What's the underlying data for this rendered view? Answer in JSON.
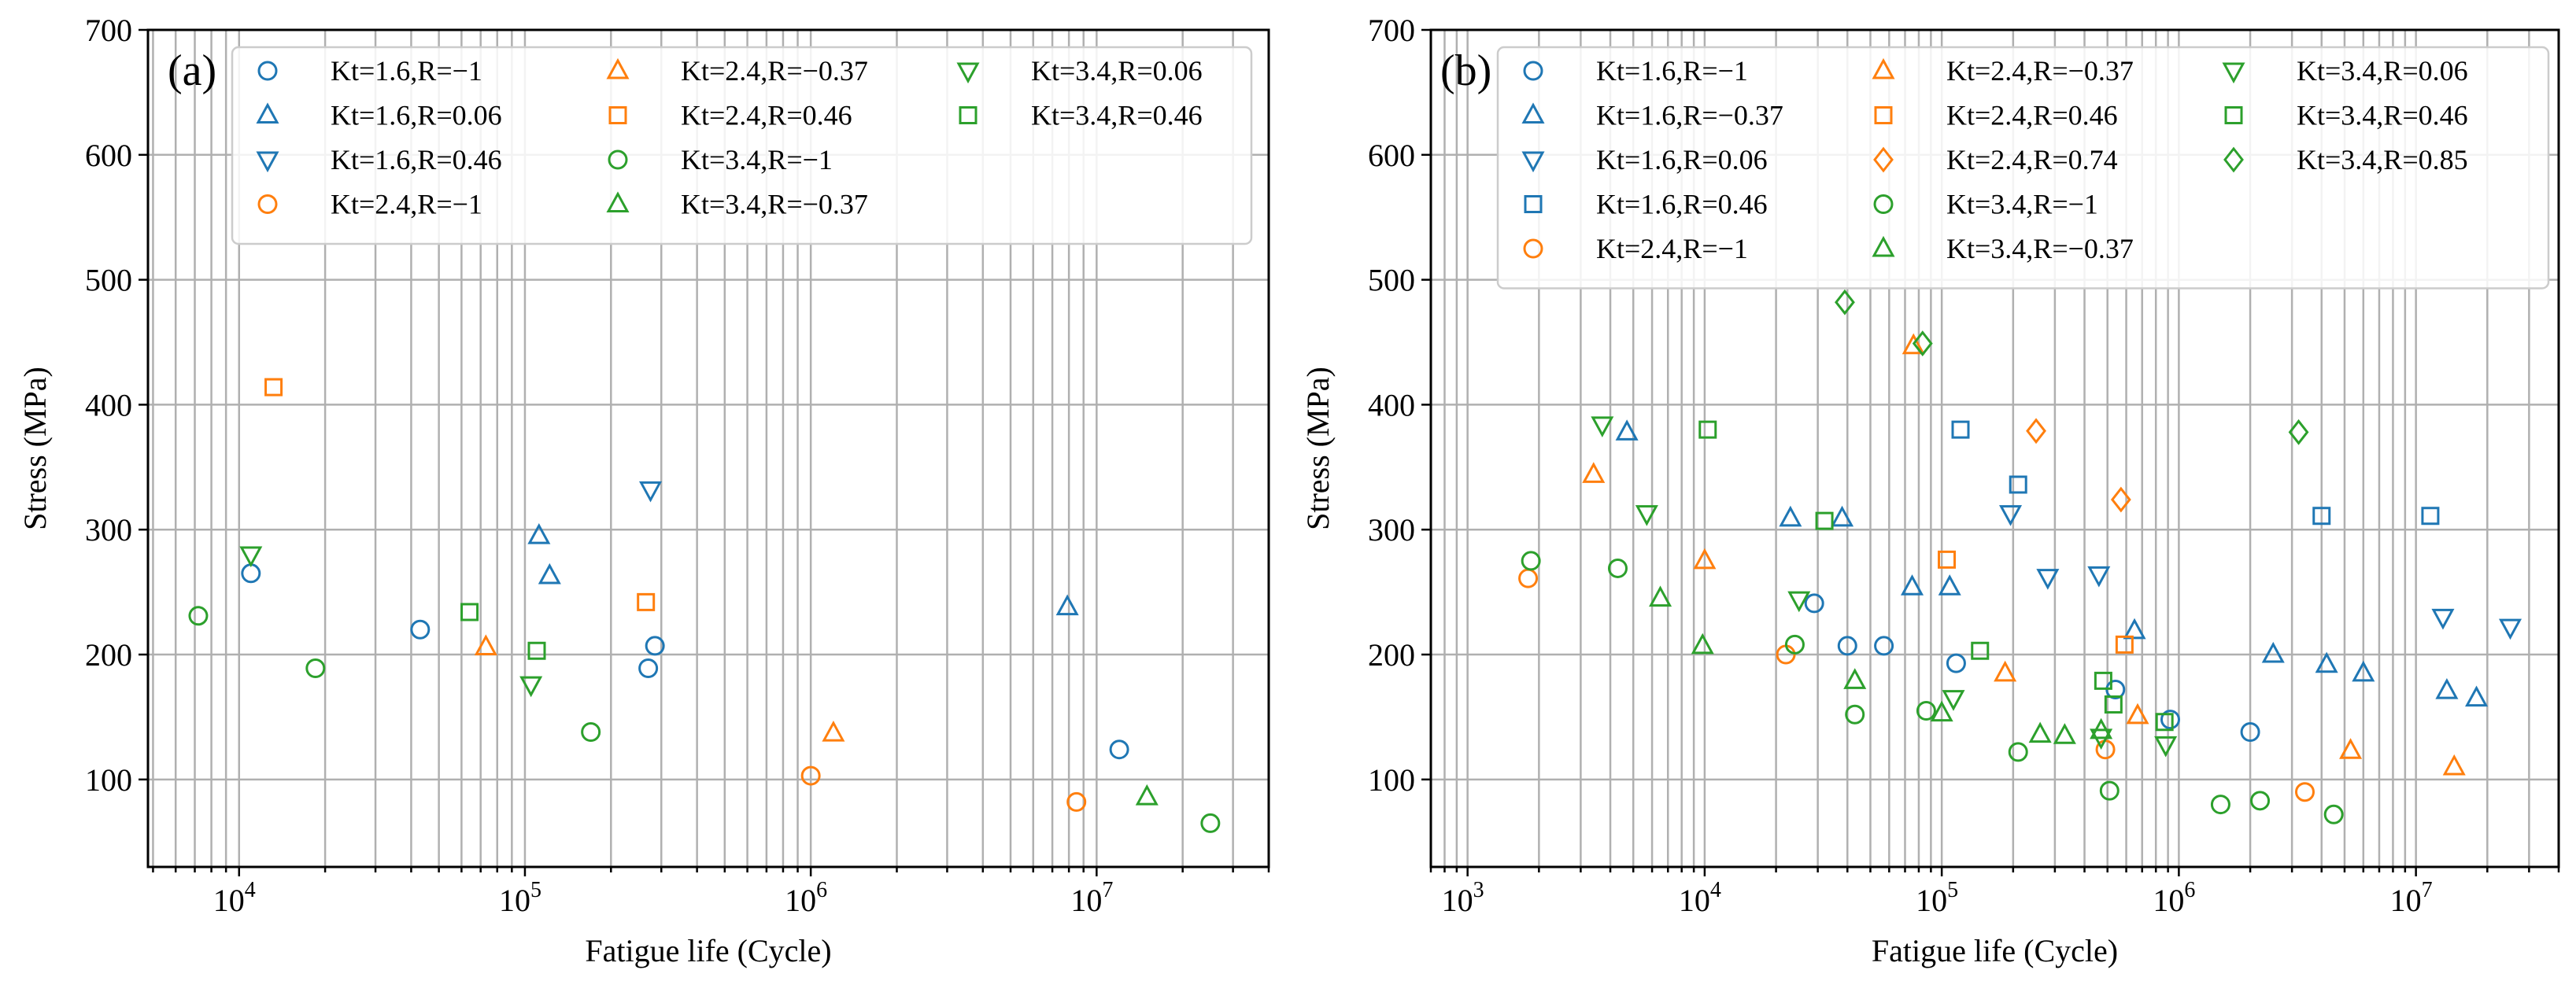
{
  "figure": {
    "panel_labels": [
      "(a)",
      "(b)"
    ]
  },
  "chart_data": [
    {
      "type": "scatter",
      "panel": "(a)",
      "title": "",
      "xlabel": "Fatigue life (Cycle)",
      "ylabel": "Stress (MPa)",
      "xscale": "log",
      "xlim": [
        4800,
        40000000
      ],
      "ylim": [
        30,
        700
      ],
      "yticks": [
        100,
        200,
        300,
        400,
        500,
        600,
        700
      ],
      "xticks": [
        {
          "value": 10000,
          "base": "10",
          "exp": "4"
        },
        {
          "value": 100000,
          "base": "10",
          "exp": "5"
        },
        {
          "value": 1000000,
          "base": "10",
          "exp": "6"
        },
        {
          "value": 10000000,
          "base": "10",
          "exp": "7"
        }
      ],
      "grid": true,
      "legend": {
        "placement": "top",
        "columns": 3
      },
      "series": [
        {
          "name": "Kt=1.6,R=−1",
          "marker": "circle",
          "color": "#1f77b4",
          "points": [
            [
              11000,
              265
            ],
            [
              43000,
              220
            ],
            [
              270000,
              189
            ],
            [
              285000,
              207
            ],
            [
              12000000,
              124
            ]
          ]
        },
        {
          "name": "Kt=1.6,R=0.06",
          "marker": "triangle-up",
          "color": "#1f77b4",
          "points": [
            [
              112000,
              295
            ],
            [
              122000,
              263
            ],
            [
              7900000,
              238
            ]
          ]
        },
        {
          "name": "Kt=1.6,R=0.46",
          "marker": "triangle-down",
          "color": "#1f77b4",
          "points": [
            [
              275000,
              332
            ]
          ]
        },
        {
          "name": "Kt=2.4,R=−1",
          "marker": "circle",
          "color": "#ff7f0e",
          "points": [
            [
              1000000,
              103
            ],
            [
              8500000,
              82
            ]
          ]
        },
        {
          "name": "Kt=2.4,R=−0.37",
          "marker": "triangle-up",
          "color": "#ff7f0e",
          "points": [
            [
              73000,
              206
            ],
            [
              1200000,
              137
            ]
          ]
        },
        {
          "name": "Kt=2.4,R=0.46",
          "marker": "square",
          "color": "#ff7f0e",
          "points": [
            [
              13200,
              414
            ],
            [
              265000,
              242
            ]
          ]
        },
        {
          "name": "Kt=3.4,R=−1",
          "marker": "circle",
          "color": "#2ca02c",
          "points": [
            [
              7200,
              231
            ],
            [
              18500,
              189
            ],
            [
              170000,
              138
            ],
            [
              25000000,
              65
            ]
          ]
        },
        {
          "name": "Kt=3.4,R=−0.37",
          "marker": "triangle-up",
          "color": "#2ca02c",
          "points": [
            [
              15000000,
              86
            ]
          ]
        },
        {
          "name": "Kt=3.4,R=0.06",
          "marker": "triangle-down",
          "color": "#2ca02c",
          "points": [
            [
              11000,
              280
            ],
            [
              105000,
              176
            ]
          ]
        },
        {
          "name": "Kt=3.4,R=0.46",
          "marker": "square",
          "color": "#2ca02c",
          "points": [
            [
              64000,
              234
            ],
            [
              110000,
              203
            ]
          ]
        }
      ]
    },
    {
      "type": "scatter",
      "panel": "(b)",
      "title": "",
      "xlabel": "Fatigue life (Cycle)",
      "ylabel": "Stress (MPa)",
      "xscale": "log",
      "xlim": [
        700,
        40000000
      ],
      "ylim": [
        30,
        700
      ],
      "yticks": [
        100,
        200,
        300,
        400,
        500,
        600,
        700
      ],
      "xticks": [
        {
          "value": 1000,
          "base": "10",
          "exp": "3"
        },
        {
          "value": 10000,
          "base": "10",
          "exp": "4"
        },
        {
          "value": 100000,
          "base": "10",
          "exp": "5"
        },
        {
          "value": 1000000,
          "base": "10",
          "exp": "6"
        },
        {
          "value": 10000000,
          "base": "10",
          "exp": "7"
        }
      ],
      "grid": true,
      "legend": {
        "placement": "top",
        "columns": 3
      },
      "series": [
        {
          "name": "Kt=1.6,R=−1",
          "marker": "circle",
          "color": "#1f77b4",
          "points": [
            [
              29000,
              241
            ],
            [
              40000,
              207
            ],
            [
              57000,
              207
            ],
            [
              115000,
              193
            ],
            [
              540000,
              172
            ],
            [
              920000,
              148
            ],
            [
              2000000,
              138
            ]
          ]
        },
        {
          "name": "Kt=1.6,R=−0.37",
          "marker": "triangle-up",
          "color": "#1f77b4",
          "points": [
            [
              4700,
              378
            ],
            [
              23000,
              309
            ],
            [
              38000,
              309
            ],
            [
              75000,
              254
            ],
            [
              108000,
              254
            ],
            [
              650000,
              219
            ],
            [
              2500000,
              200
            ],
            [
              4200000,
              192
            ],
            [
              6000000,
              185
            ],
            [
              13500000,
              171
            ],
            [
              18000000,
              165
            ]
          ]
        },
        {
          "name": "Kt=1.6,R=0.06",
          "marker": "triangle-down",
          "color": "#1f77b4",
          "points": [
            [
              195000,
              313
            ],
            [
              280000,
              262
            ],
            [
              460000,
              264
            ],
            [
              13000000,
              230
            ],
            [
              25000000,
              222
            ]
          ]
        },
        {
          "name": "Kt=1.6,R=0.46",
          "marker": "square",
          "color": "#1f77b4",
          "points": [
            [
              120000,
              380
            ],
            [
              210000,
              336
            ],
            [
              4000000,
              311
            ],
            [
              11500000,
              311
            ]
          ]
        },
        {
          "name": "Kt=2.4,R=−1",
          "marker": "circle",
          "color": "#ff7f0e",
          "points": [
            [
              1800,
              261
            ],
            [
              22000,
              200
            ],
            [
              490000,
              124
            ],
            [
              3400000,
              90
            ]
          ]
        },
        {
          "name": "Kt=2.4,R=−0.37",
          "marker": "triangle-up",
          "color": "#ff7f0e",
          "points": [
            [
              3400,
              344
            ],
            [
              10000,
              275
            ],
            [
              76000,
              447
            ],
            [
              185000,
              185
            ],
            [
              670000,
              151
            ],
            [
              5300000,
              123
            ],
            [
              14500000,
              110
            ]
          ]
        },
        {
          "name": "Kt=2.4,R=0.46",
          "marker": "square",
          "color": "#ff7f0e",
          "points": [
            [
              105000,
              276
            ],
            [
              590000,
              208
            ]
          ]
        },
        {
          "name": "Kt=2.4,R=0.74",
          "marker": "diamond",
          "color": "#ff7f0e",
          "points": [
            [
              250000,
              379
            ],
            [
              570000,
              324
            ]
          ]
        },
        {
          "name": "Kt=3.4,R=−1",
          "marker": "circle",
          "color": "#2ca02c",
          "points": [
            [
              1850,
              275
            ],
            [
              4300,
              269
            ],
            [
              24000,
              208
            ],
            [
              43000,
              152
            ],
            [
              86000,
              155
            ],
            [
              210000,
              122
            ],
            [
              510000,
              91
            ],
            [
              1500000,
              80
            ],
            [
              2200000,
              83
            ],
            [
              4500000,
              72
            ]
          ]
        },
        {
          "name": "Kt=3.4,R=−0.37",
          "marker": "triangle-up",
          "color": "#2ca02c",
          "points": [
            [
              6500,
              245
            ],
            [
              9800,
              207
            ],
            [
              43000,
              179
            ],
            [
              100000,
              153
            ],
            [
              260000,
              136
            ],
            [
              330000,
              135
            ],
            [
              470000,
              139
            ]
          ]
        },
        {
          "name": "Kt=3.4,R=0.06",
          "marker": "triangle-down",
          "color": "#2ca02c",
          "points": [
            [
              3700,
              384
            ],
            [
              5700,
              313
            ],
            [
              25000,
              244
            ],
            [
              112000,
              165
            ],
            [
              470000,
              134
            ],
            [
              880000,
              128
            ]
          ]
        },
        {
          "name": "Kt=3.4,R=0.46",
          "marker": "square",
          "color": "#2ca02c",
          "points": [
            [
              10300,
              380
            ],
            [
              32000,
              307
            ],
            [
              145000,
              203
            ],
            [
              480000,
              179
            ],
            [
              530000,
              160
            ],
            [
              870000,
              146
            ]
          ]
        },
        {
          "name": "Kt=3.4,R=0.85",
          "marker": "diamond",
          "color": "#2ca02c",
          "points": [
            [
              39000,
              482
            ],
            [
              83000,
              449
            ],
            [
              3200000,
              378
            ]
          ]
        }
      ]
    }
  ]
}
